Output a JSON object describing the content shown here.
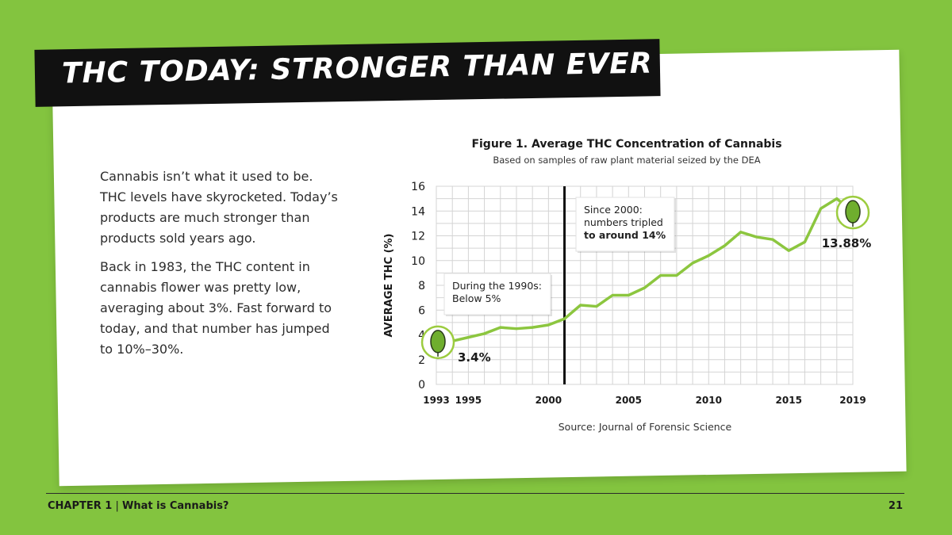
{
  "page": {
    "title": "THC TODAY: STRONGER THAN EVER",
    "paragraphs": [
      "Cannabis isn’t what it used to be. THC levels have skyrocketed. Today’s products are much stronger than products sold years ago.",
      "Back in 1983, the THC content in cannabis flower was pretty low, averaging about 3%. Fast forward to today, and that number has jumped to 10%–30%."
    ],
    "footer": {
      "chapter": "CHAPTER 1",
      "separator": "|",
      "section": "What is Cannabis?",
      "page_number": "21"
    }
  },
  "colors": {
    "background": "#83c43f",
    "line": "#8cc63f",
    "banner": "#111111"
  },
  "chart_data": {
    "type": "line",
    "title": "Figure 1. Average THC Concentration of Cannabis",
    "subtitle": "Based on samples of raw plant material seized by the DEA",
    "ylabel": "AVERAGE THC (%)",
    "xlabel": "",
    "source": "Source: Journal of Forensic Science",
    "xlim": [
      1993,
      2019
    ],
    "ylim": [
      0,
      16
    ],
    "grid": true,
    "y_ticks": [
      0,
      2,
      4,
      6,
      8,
      10,
      12,
      14,
      16
    ],
    "x_ticks": [
      1993,
      1995,
      2000,
      2005,
      2010,
      2015,
      2019
    ],
    "x": [
      1993,
      1994,
      1995,
      1996,
      1997,
      1998,
      1999,
      2000,
      2001,
      2002,
      2003,
      2004,
      2005,
      2006,
      2007,
      2008,
      2009,
      2010,
      2011,
      2012,
      2013,
      2014,
      2015,
      2016,
      2017,
      2018,
      2019
    ],
    "series": [
      {
        "values": [
          3.4,
          3.5,
          3.8,
          4.1,
          4.6,
          4.5,
          4.6,
          4.8,
          5.3,
          6.4,
          6.3,
          7.2,
          7.2,
          7.8,
          8.8,
          8.8,
          9.8,
          10.4,
          11.2,
          12.3,
          11.9,
          11.7,
          10.8,
          11.5,
          14.2,
          15.0,
          13.88
        ]
      }
    ],
    "reference_line": {
      "x": 2001
    },
    "annotations": [
      {
        "text_lines": [
          "Since 2000:",
          "numbers tripled",
          "to around 14%"
        ]
      },
      {
        "text_lines": [
          "During the 1990s:",
          "Below 5%"
        ]
      }
    ],
    "point_labels": [
      {
        "x": 1993,
        "label": "3.4%"
      },
      {
        "x": 2019,
        "label": "13.88%"
      }
    ]
  }
}
